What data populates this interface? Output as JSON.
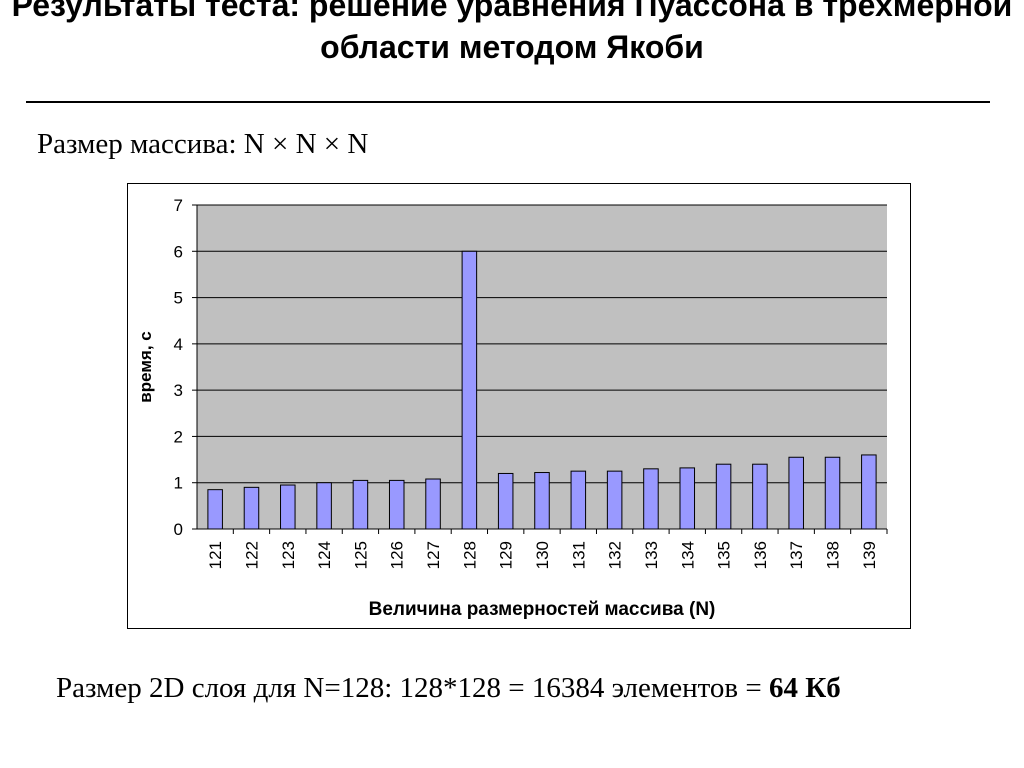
{
  "slide": {
    "title": "Результаты теста: решение уравнения Пуассона в трехмерной области методом Якоби",
    "subtitle": "Размер массива: N × N × N",
    "footer_text": "Размер 2D слоя для N=128: 128*128 = 16384 элементов = ",
    "footer_bold": "64 Кб"
  },
  "chart_data": {
    "type": "bar",
    "title": "",
    "xlabel": "Величина размерностей массива (N)",
    "ylabel": "время, с",
    "ylim": [
      0,
      7
    ],
    "yticks": [
      "0",
      "1",
      "2",
      "3",
      "4",
      "5",
      "6",
      "7"
    ],
    "categories": [
      "121",
      "122",
      "123",
      "124",
      "125",
      "126",
      "127",
      "128",
      "129",
      "130",
      "131",
      "132",
      "133",
      "134",
      "135",
      "136",
      "137",
      "138",
      "139"
    ],
    "values": [
      0.85,
      0.9,
      0.95,
      1.0,
      1.05,
      1.05,
      1.08,
      6.0,
      1.2,
      1.22,
      1.25,
      1.25,
      1.3,
      1.32,
      1.4,
      1.4,
      1.55,
      1.55,
      1.6
    ],
    "grid": true,
    "legend": "none",
    "colors": {
      "plot_bg": "#c0c0c0",
      "bar_fill": "#9999ff",
      "bar_stroke": "#000000",
      "grid": "#000000"
    }
  }
}
